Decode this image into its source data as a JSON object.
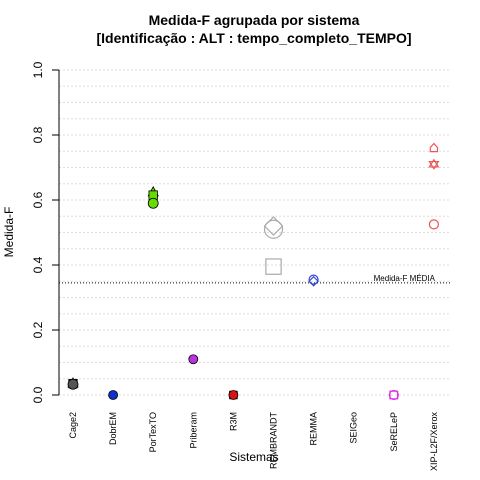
{
  "chart_data": {
    "type": "scatter",
    "title": "Medida-F agrupada por sistema",
    "subtitle": "[Identificação : ALT : tempo_completo_TEMPO]",
    "xlabel": "Sistemas",
    "ylabel": "Medida-F",
    "ylim": [
      0,
      1
    ],
    "yticks": [
      "0.0",
      "0.2",
      "0.4",
      "0.6",
      "0.8",
      "1.0"
    ],
    "grid": "horizontal dotted",
    "categories": [
      "Cage2",
      "DobrEM",
      "PorTexTO",
      "Priberam",
      "R3M",
      "REMBRANDT",
      "REMMA",
      "SEIGeo",
      "SeRELeP",
      "XIP-L2F/Xerox"
    ],
    "reference_line": {
      "label": "Medida-F MÉDIA",
      "value": 0.345
    },
    "points": [
      {
        "category": "Cage2",
        "y": 0.037,
        "shape": "triangle",
        "color": "#555555",
        "filled": true
      },
      {
        "category": "Cage2",
        "y": 0.035,
        "shape": "square",
        "color": "#555555",
        "filled": true
      },
      {
        "category": "Cage2",
        "y": 0.033,
        "shape": "circle",
        "color": "#555555",
        "filled": true
      },
      {
        "category": "DobrEM",
        "y": 0.0,
        "shape": "circle",
        "color": "#1030d0",
        "filled": true
      },
      {
        "category": "PorTexTO",
        "y": 0.625,
        "shape": "triangle",
        "color": "#66dd00",
        "filled": true
      },
      {
        "category": "PorTexTO",
        "y": 0.615,
        "shape": "square",
        "color": "#66dd00",
        "filled": true
      },
      {
        "category": "PorTexTO",
        "y": 0.59,
        "shape": "circle",
        "color": "#66dd00",
        "filled": true
      },
      {
        "category": "Priberam",
        "y": 0.11,
        "shape": "circle",
        "color": "#bb33dd",
        "filled": true
      },
      {
        "category": "R3M",
        "y": 0.0,
        "shape": "square",
        "color": "#dd1111",
        "filled": true
      },
      {
        "category": "R3M",
        "y": 0.0,
        "shape": "circle",
        "color": "#dd1111",
        "filled": true
      },
      {
        "category": "REMBRANDT",
        "y": 0.52,
        "shape": "diamond",
        "color": "#aaaaaa",
        "filled": false
      },
      {
        "category": "REMBRANDT",
        "y": 0.51,
        "shape": "circle",
        "color": "#aaaaaa",
        "filled": false
      },
      {
        "category": "REMBRANDT",
        "y": 0.395,
        "shape": "square",
        "color": "#aaaaaa",
        "filled": false
      },
      {
        "category": "REMMA",
        "y": 0.355,
        "shape": "circle",
        "color": "#3344dd",
        "filled": false
      },
      {
        "category": "REMMA",
        "y": 0.35,
        "shape": "diamond",
        "color": "#3344dd",
        "filled": false
      },
      {
        "category": "SeRELeP",
        "y": 0.0,
        "shape": "square",
        "color": "#dd33dd",
        "filled": false
      },
      {
        "category": "SeRELeP",
        "y": 0.0,
        "shape": "circle",
        "color": "#dd33dd",
        "filled": false
      },
      {
        "category": "XIP-L2F/Xerox",
        "y": 0.76,
        "shape": "house",
        "color": "#ee5555",
        "filled": false
      },
      {
        "category": "XIP-L2F/Xerox",
        "y": 0.71,
        "shape": "star",
        "color": "#ee5555",
        "filled": false
      },
      {
        "category": "XIP-L2F/Xerox",
        "y": 0.525,
        "shape": "circle",
        "color": "#ee5555",
        "filled": false
      }
    ]
  }
}
